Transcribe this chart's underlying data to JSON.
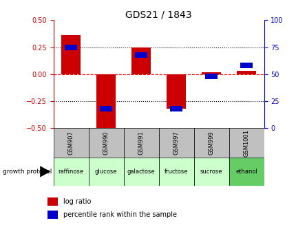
{
  "title": "GDS21 / 1843",
  "samples": [
    "GSM907",
    "GSM990",
    "GSM991",
    "GSM997",
    "GSM999",
    "GSM1001"
  ],
  "protocols": [
    "raffinose",
    "glucose",
    "galactose",
    "fructose",
    "sucrose",
    "ethanol"
  ],
  "log_ratio": [
    0.36,
    -0.56,
    0.25,
    -0.32,
    0.02,
    0.03
  ],
  "percentile_rank": [
    75,
    18,
    68,
    18,
    48,
    58
  ],
  "bar_color": "#cc0000",
  "dot_color": "#0000cc",
  "protocol_colors": [
    "#ccffcc",
    "#ccffcc",
    "#ccffcc",
    "#ccffcc",
    "#ccffcc",
    "#66cc66"
  ],
  "gsm_bg": "#c0c0c0",
  "ylim_left": [
    -0.5,
    0.5
  ],
  "ylim_right": [
    0,
    100
  ],
  "yticks_left": [
    -0.5,
    -0.25,
    0.0,
    0.25,
    0.5
  ],
  "yticks_right": [
    0,
    25,
    50,
    75,
    100
  ],
  "hlines_dotted": [
    -0.25,
    0.25
  ],
  "hline_dashed": 0.0,
  "bar_width": 0.55,
  "legend_labels": [
    "log ratio",
    "percentile rank within the sample"
  ],
  "legend_colors": [
    "#cc0000",
    "#0000cc"
  ],
  "growth_protocol_label": "growth protocol",
  "left_ylabel_color": "#cc0000",
  "right_ylabel_color": "#0000cc",
  "title_fontsize": 10,
  "tick_fontsize": 7,
  "gsm_fontsize": 6,
  "proto_fontsize": 6
}
